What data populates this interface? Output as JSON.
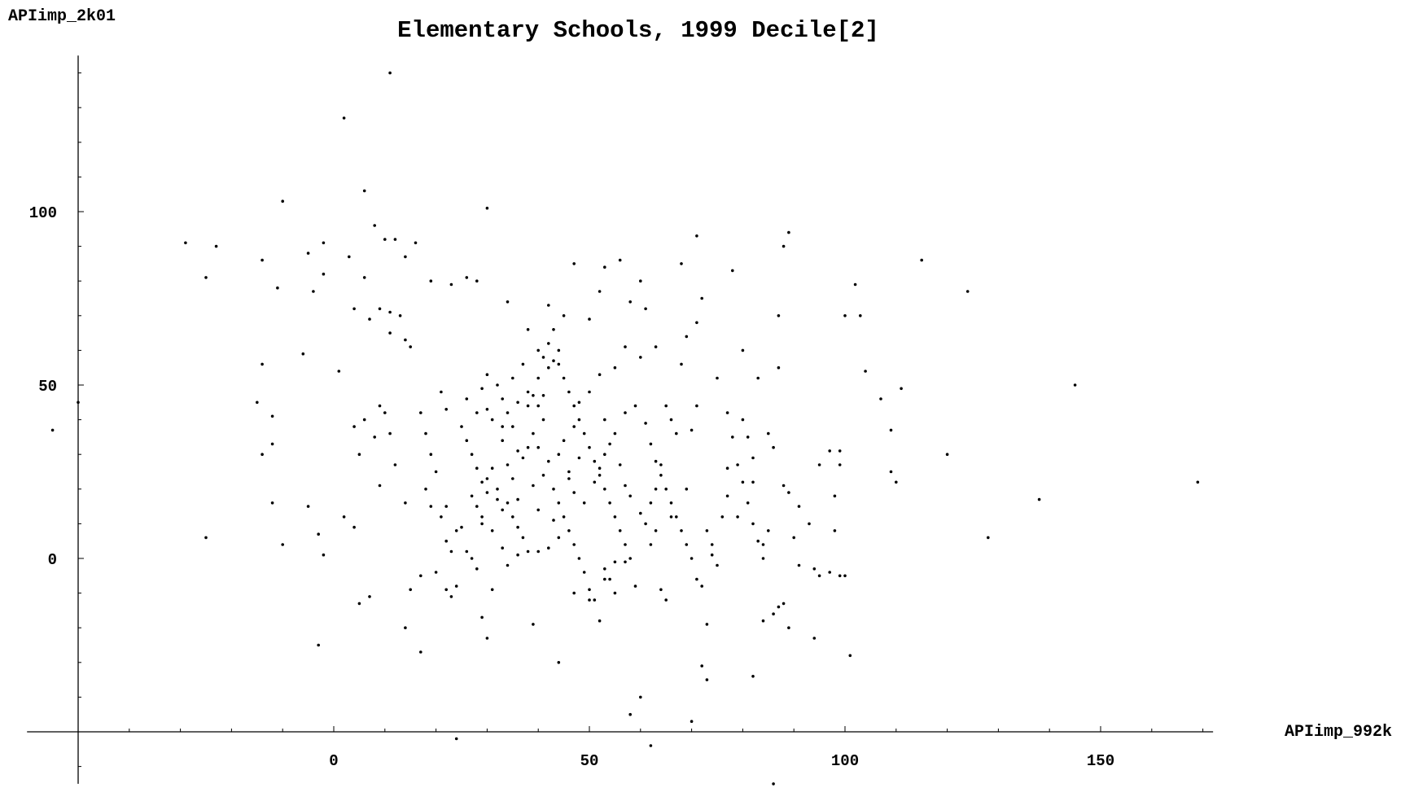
{
  "chart_data": {
    "type": "scatter",
    "title": "Elementary Schools, 1999 Decile[2]",
    "xlabel": "APIimp_992k",
    "ylabel": "APIimp_2k01",
    "xlim": [
      -60,
      175
    ],
    "ylim": [
      -65,
      145
    ],
    "x_ticks": [
      0,
      50,
      100,
      150
    ],
    "y_ticks": [
      0,
      50,
      100
    ],
    "x_tick_labels": [
      "0",
      "50",
      "100",
      "150"
    ],
    "y_tick_labels": [
      "0",
      "50",
      "100"
    ],
    "grid": false,
    "points": [
      [
        11,
        140
      ],
      [
        2,
        127
      ],
      [
        6,
        106
      ],
      [
        -10,
        103
      ],
      [
        30,
        101
      ],
      [
        -29,
        91
      ],
      [
        -23,
        90
      ],
      [
        -25,
        81
      ],
      [
        -14,
        86
      ],
      [
        -11,
        78
      ],
      [
        -5,
        88
      ],
      [
        -2,
        91
      ],
      [
        -2,
        82
      ],
      [
        3,
        87
      ],
      [
        6,
        81
      ],
      [
        8,
        96
      ],
      [
        10,
        92
      ],
      [
        12,
        92
      ],
      [
        14,
        87
      ],
      [
        16,
        91
      ],
      [
        19,
        80
      ],
      [
        23,
        79
      ],
      [
        26,
        81
      ],
      [
        28,
        80
      ],
      [
        -4,
        77
      ],
      [
        4,
        72
      ],
      [
        7,
        69
      ],
      [
        9,
        72
      ],
      [
        11,
        71
      ],
      [
        13,
        70
      ],
      [
        11,
        65
      ],
      [
        14,
        63
      ],
      [
        15,
        61
      ],
      [
        -6,
        59
      ],
      [
        -14,
        56
      ],
      [
        -15,
        45
      ],
      [
        -12,
        41
      ],
      [
        -12,
        33
      ],
      [
        -14,
        30
      ],
      [
        -50,
        45
      ],
      [
        -55,
        37
      ],
      [
        -12,
        16
      ],
      [
        -5,
        15
      ],
      [
        -10,
        4
      ],
      [
        -25,
        6
      ],
      [
        2,
        12
      ],
      [
        4,
        9
      ],
      [
        4,
        38
      ],
      [
        6,
        40
      ],
      [
        1,
        54
      ],
      [
        8,
        35
      ],
      [
        9,
        44
      ],
      [
        10,
        42
      ],
      [
        11,
        36
      ],
      [
        12,
        27
      ],
      [
        14,
        16
      ],
      [
        9,
        21
      ],
      [
        5,
        30
      ],
      [
        -2,
        1
      ],
      [
        -3,
        7
      ],
      [
        -3,
        -25
      ],
      [
        5,
        -13
      ],
      [
        7,
        -11
      ],
      [
        14,
        -20
      ],
      [
        15,
        -9
      ],
      [
        17,
        -5
      ],
      [
        17,
        -27
      ],
      [
        20,
        -4
      ],
      [
        22,
        -9
      ],
      [
        23,
        -11
      ],
      [
        17,
        42
      ],
      [
        18,
        36
      ],
      [
        19,
        30
      ],
      [
        20,
        25
      ],
      [
        18,
        20
      ],
      [
        19,
        15
      ],
      [
        21,
        12
      ],
      [
        22,
        15
      ],
      [
        24,
        8
      ],
      [
        22,
        5
      ],
      [
        23,
        2
      ],
      [
        25,
        9
      ],
      [
        26,
        2
      ],
      [
        27,
        0
      ],
      [
        28,
        -3
      ],
      [
        29,
        -17
      ],
      [
        30,
        -23
      ],
      [
        24,
        -8
      ],
      [
        24,
        -52
      ],
      [
        21,
        48
      ],
      [
        22,
        43
      ],
      [
        25,
        38
      ],
      [
        26,
        34
      ],
      [
        27,
        30
      ],
      [
        28,
        26
      ],
      [
        29,
        22
      ],
      [
        30,
        19
      ],
      [
        28,
        15
      ],
      [
        29,
        12
      ],
      [
        31,
        8
      ],
      [
        30,
        53
      ],
      [
        32,
        50
      ],
      [
        33,
        46
      ],
      [
        34,
        42
      ],
      [
        35,
        38
      ],
      [
        33,
        34
      ],
      [
        36,
        31
      ],
      [
        34,
        27
      ],
      [
        35,
        23
      ],
      [
        32,
        20
      ],
      [
        34,
        16
      ],
      [
        35,
        12
      ],
      [
        36,
        9
      ],
      [
        37,
        6
      ],
      [
        33,
        3
      ],
      [
        34,
        -2
      ],
      [
        36,
        1
      ],
      [
        38,
        2
      ],
      [
        35,
        52
      ],
      [
        37,
        56
      ],
      [
        38,
        48
      ],
      [
        40,
        44
      ],
      [
        41,
        40
      ],
      [
        39,
        36
      ],
      [
        40,
        32
      ],
      [
        42,
        28
      ],
      [
        41,
        24
      ],
      [
        43,
        20
      ],
      [
        44,
        16
      ],
      [
        45,
        12
      ],
      [
        46,
        8
      ],
      [
        47,
        4
      ],
      [
        48,
        0
      ],
      [
        49,
        -4
      ],
      [
        50,
        -9
      ],
      [
        51,
        -12
      ],
      [
        52,
        -18
      ],
      [
        53,
        -3
      ],
      [
        54,
        -6
      ],
      [
        55,
        -10
      ],
      [
        41,
        58
      ],
      [
        42,
        62
      ],
      [
        43,
        66
      ],
      [
        44,
        56
      ],
      [
        45,
        52
      ],
      [
        46,
        48
      ],
      [
        47,
        44
      ],
      [
        48,
        40
      ],
      [
        49,
        36
      ],
      [
        50,
        32
      ],
      [
        51,
        28
      ],
      [
        52,
        24
      ],
      [
        53,
        20
      ],
      [
        54,
        16
      ],
      [
        55,
        12
      ],
      [
        56,
        8
      ],
      [
        57,
        4
      ],
      [
        58,
        0
      ],
      [
        59,
        -8
      ],
      [
        60,
        -40
      ],
      [
        58,
        -45
      ],
      [
        62,
        -54
      ],
      [
        70,
        -47
      ],
      [
        86,
        -65
      ],
      [
        42,
        73
      ],
      [
        45,
        70
      ],
      [
        47,
        85
      ],
      [
        50,
        69
      ],
      [
        52,
        77
      ],
      [
        53,
        84
      ],
      [
        56,
        86
      ],
      [
        58,
        74
      ],
      [
        60,
        80
      ],
      [
        61,
        72
      ],
      [
        63,
        61
      ],
      [
        60,
        58
      ],
      [
        57,
        61
      ],
      [
        55,
        55
      ],
      [
        52,
        53
      ],
      [
        50,
        48
      ],
      [
        48,
        45
      ],
      [
        53,
        40
      ],
      [
        55,
        36
      ],
      [
        57,
        42
      ],
      [
        59,
        44
      ],
      [
        61,
        39
      ],
      [
        62,
        33
      ],
      [
        63,
        28
      ],
      [
        64,
        24
      ],
      [
        65,
        20
      ],
      [
        66,
        16
      ],
      [
        67,
        12
      ],
      [
        68,
        8
      ],
      [
        69,
        4
      ],
      [
        70,
        0
      ],
      [
        71,
        -6
      ],
      [
        72,
        -8
      ],
      [
        73,
        -19
      ],
      [
        72,
        -31
      ],
      [
        73,
        -35
      ],
      [
        64,
        -9
      ],
      [
        65,
        -12
      ],
      [
        62,
        4
      ],
      [
        63,
        8
      ],
      [
        65,
        44
      ],
      [
        66,
        40
      ],
      [
        67,
        36
      ],
      [
        68,
        56
      ],
      [
        69,
        64
      ],
      [
        71,
        68
      ],
      [
        72,
        75
      ],
      [
        68,
        85
      ],
      [
        71,
        93
      ],
      [
        78,
        83
      ],
      [
        80,
        60
      ],
      [
        75,
        52
      ],
      [
        77,
        42
      ],
      [
        78,
        35
      ],
      [
        79,
        27
      ],
      [
        80,
        22
      ],
      [
        81,
        16
      ],
      [
        82,
        10
      ],
      [
        83,
        5
      ],
      [
        84,
        0
      ],
      [
        75,
        -2
      ],
      [
        74,
        4
      ],
      [
        77,
        26
      ],
      [
        82,
        22
      ],
      [
        83,
        52
      ],
      [
        87,
        70
      ],
      [
        88,
        90
      ],
      [
        89,
        94
      ],
      [
        87,
        55
      ],
      [
        85,
        36
      ],
      [
        86,
        32
      ],
      [
        88,
        21
      ],
      [
        89,
        19
      ],
      [
        90,
        6
      ],
      [
        91,
        -2
      ],
      [
        93,
        10
      ],
      [
        95,
        27
      ],
      [
        97,
        31
      ],
      [
        98,
        18
      ],
      [
        98,
        8
      ],
      [
        99,
        27
      ],
      [
        99,
        31
      ],
      [
        100,
        70
      ],
      [
        102,
        79
      ],
      [
        103,
        70
      ],
      [
        104,
        54
      ],
      [
        107,
        46
      ],
      [
        109,
        37
      ],
      [
        109,
        25
      ],
      [
        110,
        22
      ],
      [
        111,
        49
      ],
      [
        115,
        86
      ],
      [
        120,
        30
      ],
      [
        124,
        77
      ],
      [
        128,
        6
      ],
      [
        138,
        17
      ],
      [
        145,
        50
      ],
      [
        169,
        22
      ],
      [
        84,
        -18
      ],
      [
        86,
        -16
      ],
      [
        87,
        -14
      ],
      [
        88,
        -13
      ],
      [
        89,
        -20
      ],
      [
        94,
        -23
      ],
      [
        95,
        -5
      ],
      [
        97,
        -4
      ],
      [
        100,
        -5
      ],
      [
        101,
        -28
      ],
      [
        82,
        -34
      ],
      [
        84,
        4
      ],
      [
        85,
        8
      ],
      [
        91,
        15
      ],
      [
        94,
        -3
      ],
      [
        99,
        -5
      ],
      [
        46,
        25
      ],
      [
        44,
        30
      ],
      [
        38,
        32
      ],
      [
        37,
        29
      ],
      [
        31,
        26
      ],
      [
        30,
        23
      ],
      [
        27,
        18
      ],
      [
        26,
        46
      ],
      [
        28,
        42
      ],
      [
        31,
        40
      ],
      [
        40,
        52
      ],
      [
        43,
        57
      ],
      [
        39,
        47
      ],
      [
        38,
        44
      ],
      [
        45,
        34
      ],
      [
        46,
        23
      ],
      [
        47,
        19
      ],
      [
        49,
        16
      ],
      [
        51,
        22
      ],
      [
        52,
        26
      ],
      [
        53,
        30
      ],
      [
        54,
        33
      ],
      [
        56,
        27
      ],
      [
        57,
        21
      ],
      [
        58,
        18
      ],
      [
        60,
        13
      ],
      [
        61,
        10
      ],
      [
        62,
        16
      ],
      [
        63,
        20
      ],
      [
        64,
        27
      ],
      [
        66,
        12
      ],
      [
        69,
        20
      ],
      [
        70,
        37
      ],
      [
        71,
        44
      ],
      [
        73,
        8
      ],
      [
        74,
        1
      ],
      [
        76,
        12
      ],
      [
        77,
        18
      ],
      [
        79,
        12
      ],
      [
        80,
        40
      ],
      [
        81,
        35
      ],
      [
        82,
        29
      ],
      [
        34,
        74
      ],
      [
        38,
        66
      ],
      [
        40,
        60
      ],
      [
        42,
        55
      ],
      [
        44,
        60
      ],
      [
        47,
        38
      ],
      [
        48,
        29
      ],
      [
        41,
        47
      ],
      [
        36,
        45
      ],
      [
        29,
        49
      ],
      [
        30,
        43
      ],
      [
        33,
        38
      ],
      [
        32,
        17
      ],
      [
        33,
        14
      ],
      [
        29,
        10
      ],
      [
        31,
        -9
      ],
      [
        36,
        17
      ],
      [
        39,
        21
      ],
      [
        40,
        14
      ],
      [
        43,
        11
      ],
      [
        44,
        6
      ],
      [
        42,
        3
      ],
      [
        40,
        2
      ],
      [
        39,
        -19
      ],
      [
        44,
        -30
      ],
      [
        47,
        -10
      ],
      [
        50,
        -12
      ],
      [
        53,
        -6
      ],
      [
        55,
        -1
      ],
      [
        57,
        -1
      ]
    ]
  }
}
